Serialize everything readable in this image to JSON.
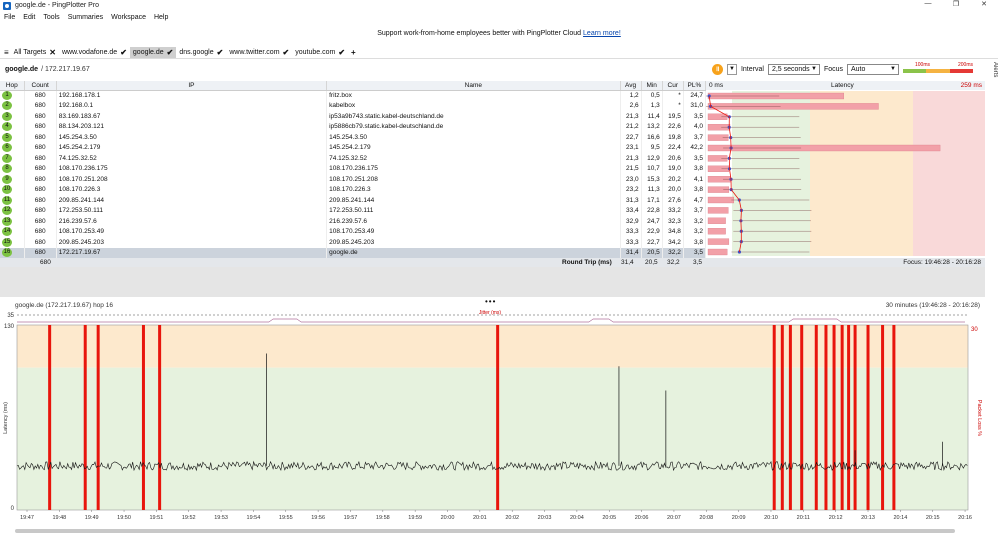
{
  "window": {
    "title": "google.de - PingPlotter Pro",
    "controls": [
      "—",
      "❐",
      "✕"
    ]
  },
  "menu": [
    "File",
    "Edit",
    "Tools",
    "Summaries",
    "Workspace",
    "Help"
  ],
  "banner": {
    "text": "Support work-from-home employees better with PingPlotter Cloud",
    "link": "Learn more!"
  },
  "tabs": {
    "menu_icon": "≡",
    "all_label": "All Targets",
    "items": [
      {
        "label": "www.vodafone.de",
        "active": false
      },
      {
        "label": "google.de",
        "active": true
      },
      {
        "label": "dns.google",
        "active": false
      },
      {
        "label": "www.twitter.com",
        "active": false
      },
      {
        "label": "youtube.com",
        "active": false
      }
    ],
    "add": "+"
  },
  "target": {
    "name": "google.de",
    "ip": "/ 172.217.19.67"
  },
  "controls": {
    "interval_label": "Interval",
    "interval_value": "2,5 seconds",
    "focus_label": "Focus",
    "focus_value": "Auto",
    "scale_low": "100ms",
    "scale_high": "200ms",
    "alerts_label": "Alerts"
  },
  "hop_table": {
    "columns": [
      "Hop",
      "Count",
      "IP",
      "Name",
      "Avg",
      "Min",
      "Cur",
      "PL%"
    ],
    "rows": [
      {
        "hop": "1",
        "count": "680",
        "ip": "192.168.178.1",
        "name": "fritz.box",
        "avg": "1,2",
        "min": "0,5",
        "cur": "*",
        "pl": "24,7"
      },
      {
        "hop": "2",
        "count": "680",
        "ip": "192.168.0.1",
        "name": "kabelbox",
        "avg": "2,6",
        "min": "1,3",
        "cur": "*",
        "pl": "31,0"
      },
      {
        "hop": "3",
        "count": "680",
        "ip": "83.169.183.67",
        "name": "ip53a9b743.static.kabel-deutschland.de",
        "avg": "21,3",
        "min": "11,4",
        "cur": "19,5",
        "pl": "3,5"
      },
      {
        "hop": "4",
        "count": "680",
        "ip": "88.134.203.121",
        "name": "ip5886cb79.static.kabel-deutschland.de",
        "avg": "21,2",
        "min": "13,2",
        "cur": "22,6",
        "pl": "4,0"
      },
      {
        "hop": "5",
        "count": "680",
        "ip": "145.254.3.50",
        "name": "145.254.3.50",
        "avg": "22,7",
        "min": "16,6",
        "cur": "19,8",
        "pl": "3,7"
      },
      {
        "hop": "6",
        "count": "680",
        "ip": "145.254.2.179",
        "name": "145.254.2.179",
        "avg": "23,1",
        "min": "9,5",
        "cur": "22,4",
        "pl": "42,2"
      },
      {
        "hop": "7",
        "count": "680",
        "ip": "74.125.32.52",
        "name": "74.125.32.52",
        "avg": "21,3",
        "min": "12,9",
        "cur": "20,6",
        "pl": "3,5"
      },
      {
        "hop": "8",
        "count": "680",
        "ip": "108.170.236.175",
        "name": "108.170.236.175",
        "avg": "21,5",
        "min": "10,7",
        "cur": "19,0",
        "pl": "3,8"
      },
      {
        "hop": "9",
        "count": "680",
        "ip": "108.170.251.208",
        "name": "108.170.251.208",
        "avg": "23,0",
        "min": "15,3",
        "cur": "20,2",
        "pl": "4,1"
      },
      {
        "hop": "10",
        "count": "680",
        "ip": "108.170.226.3",
        "name": "108.170.226.3",
        "avg": "23,2",
        "min": "11,3",
        "cur": "20,0",
        "pl": "3,8"
      },
      {
        "hop": "11",
        "count": "680",
        "ip": "209.85.241.144",
        "name": "209.85.241.144",
        "avg": "31,3",
        "min": "17,1",
        "cur": "27,6",
        "pl": "4,7"
      },
      {
        "hop": "12",
        "count": "680",
        "ip": "172.253.50.111",
        "name": "172.253.50.111",
        "avg": "33,4",
        "min": "22,8",
        "cur": "33,2",
        "pl": "3,7"
      },
      {
        "hop": "13",
        "count": "680",
        "ip": "216.239.57.6",
        "name": "216.239.57.6",
        "avg": "32,9",
        "min": "24,7",
        "cur": "32,3",
        "pl": "3,2"
      },
      {
        "hop": "14",
        "count": "680",
        "ip": "108.170.253.49",
        "name": "108.170.253.49",
        "avg": "33,3",
        "min": "22,9",
        "cur": "34,8",
        "pl": "3,2"
      },
      {
        "hop": "15",
        "count": "680",
        "ip": "209.85.245.203",
        "name": "209.85.245.203",
        "avg": "33,3",
        "min": "22,7",
        "cur": "34,2",
        "pl": "3,8"
      },
      {
        "hop": "16",
        "count": "680",
        "ip": "172.217.19.67",
        "name": "google.de",
        "avg": "31,4",
        "min": "20,5",
        "cur": "32,2",
        "pl": "3,5",
        "selected": true
      }
    ]
  },
  "latency_header": {
    "left": "0 ms",
    "center": "Latency",
    "right": "259 ms"
  },
  "summary": {
    "count": "680",
    "label": "Round Trip (ms)",
    "avg": "31,4",
    "min": "20,5",
    "cur": "32,2",
    "pl": "3,5",
    "focus": "Focus: 19:46:28 - 20:16:28"
  },
  "graph": {
    "title": "google.de (172.217.19.67) hop 16",
    "range": "30 minutes (19:46:28 - 20:16:28)",
    "jitter_label": "Jitter (ms)",
    "y_label": "Latency (ms)",
    "y2_label": "Packet Loss %",
    "y_top": "130",
    "y_mid": "35",
    "y_zero": "0",
    "y2_top": "30",
    "times": [
      "19:47",
      "19:48",
      "19:49",
      "19:50",
      "19:51",
      "19:52",
      "19:53",
      "19:54",
      "19:55",
      "19:56",
      "19:57",
      "19:58",
      "19:59",
      "20:00",
      "20:01",
      "20:02",
      "20:03",
      "20:04",
      "20:05",
      "20:06",
      "20:07",
      "20:08",
      "20:09",
      "20:10",
      "20:11",
      "20:12",
      "20:13",
      "20:14",
      "20:15",
      "20:16"
    ],
    "loss_positions": [
      0.7,
      1.8,
      2.2,
      3.6,
      4.1,
      14.55,
      23.1,
      23.35,
      23.6,
      23.95,
      24.4,
      24.7,
      24.95,
      25.2,
      25.4,
      25.6,
      26.0,
      26.45,
      26.8
    ],
    "spikes": [
      [
        7.4,
        110
      ],
      [
        18.3,
        101
      ],
      [
        19.75,
        84
      ],
      [
        25.6,
        42
      ],
      [
        28.3,
        48
      ]
    ]
  },
  "colors": {
    "loss": "#e8150c",
    "good": "#e6f2de",
    "warn": "#fde9cd",
    "bad": "#f9d9d9",
    "hop": "#7cc242",
    "accent": "#f7a21b"
  }
}
